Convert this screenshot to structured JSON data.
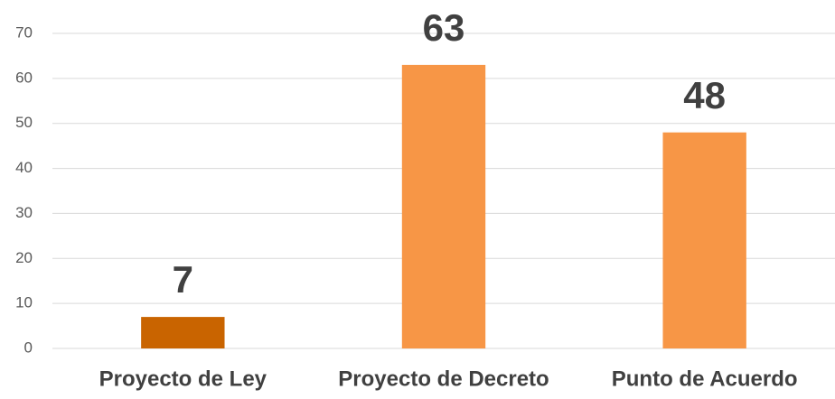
{
  "chart_data": {
    "type": "bar",
    "categories": [
      "Proyecto de Ley",
      "Proyecto de Decreto",
      "Punto de Acuerdo"
    ],
    "values": [
      7,
      63,
      48
    ],
    "colors": [
      "#c96400",
      "#f79646",
      "#f79646"
    ],
    "ylim": [
      0,
      70
    ],
    "yticks": [
      0,
      10,
      20,
      30,
      40,
      50,
      60,
      70
    ],
    "grid": true,
    "data_labels": true
  }
}
